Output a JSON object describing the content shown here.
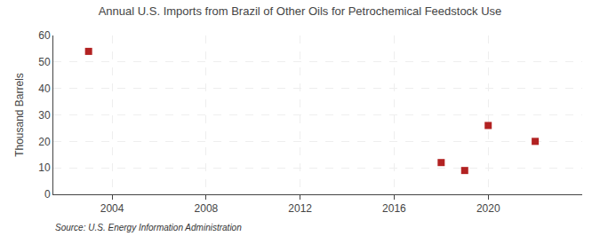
{
  "chart_data": {
    "type": "scatter",
    "title": "Annual U.S. Imports from Brazil of Other Oils for Petrochemical Feedstock Use",
    "ylabel": "Thousand Barrels",
    "annotations": [
      "Source: U.S. Energy Information Administration"
    ],
    "x": [
      2003,
      2018,
      2019,
      2020,
      2022
    ],
    "values": [
      54,
      12,
      9,
      26,
      20
    ],
    "color": "#b22222",
    "marker": "square",
    "xlim": [
      2001.5,
      2024.0
    ],
    "xticks": [
      2004,
      2008,
      2012,
      2016,
      2020
    ],
    "ylim": [
      0,
      60
    ],
    "yticks": [
      0,
      10,
      20,
      30,
      40,
      50,
      60
    ],
    "grid": true
  }
}
